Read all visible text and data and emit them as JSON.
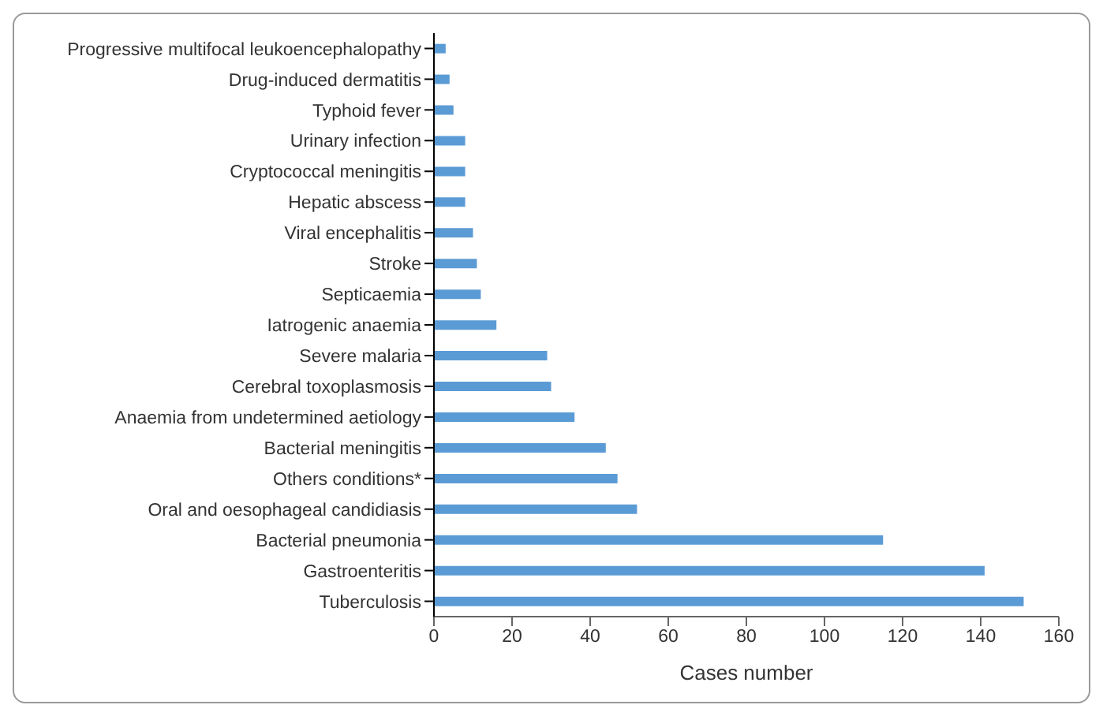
{
  "chart_data": {
    "type": "bar",
    "orientation": "horizontal",
    "xlabel": "Cases number",
    "categories": [
      "Progressive multifocal leukoencephalopathy",
      "Drug-induced dermatitis",
      "Typhoid fever",
      "Urinary infection",
      "Cryptococcal meningitis",
      "Hepatic abscess",
      "Viral encephalitis",
      "Stroke",
      "Septicaemia",
      "Iatrogenic anaemia",
      "Severe malaria",
      "Cerebral toxoplasmosis",
      "Anaemia from undetermined aetiology",
      "Bacterial meningitis",
      "Others conditions*",
      "Oral and oesophageal candidiasis",
      "Bacterial pneumonia",
      "Gastroenteritis",
      "Tuberculosis"
    ],
    "values": [
      3,
      4,
      5,
      8,
      8,
      8,
      10,
      11,
      12,
      16,
      29,
      30,
      36,
      44,
      47,
      52,
      115,
      141,
      151
    ],
    "color": "#5b9bd5",
    "xlim": [
      0,
      160
    ],
    "xticks": [
      0,
      20,
      40,
      60,
      80,
      100,
      120,
      140,
      160
    ],
    "grid": false
  }
}
